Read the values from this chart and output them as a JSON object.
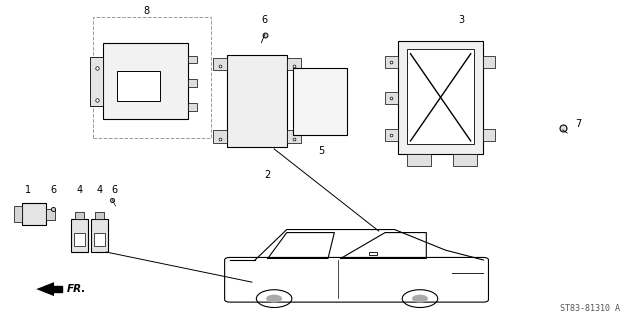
{
  "title": "",
  "bg_color": "#ffffff",
  "border_color": "#000000",
  "line_color": "#000000",
  "part_number_text": "ST83-81310 A",
  "fr_label": "FR.",
  "fig_size": [
    6.37,
    3.2
  ],
  "dpi": 100
}
